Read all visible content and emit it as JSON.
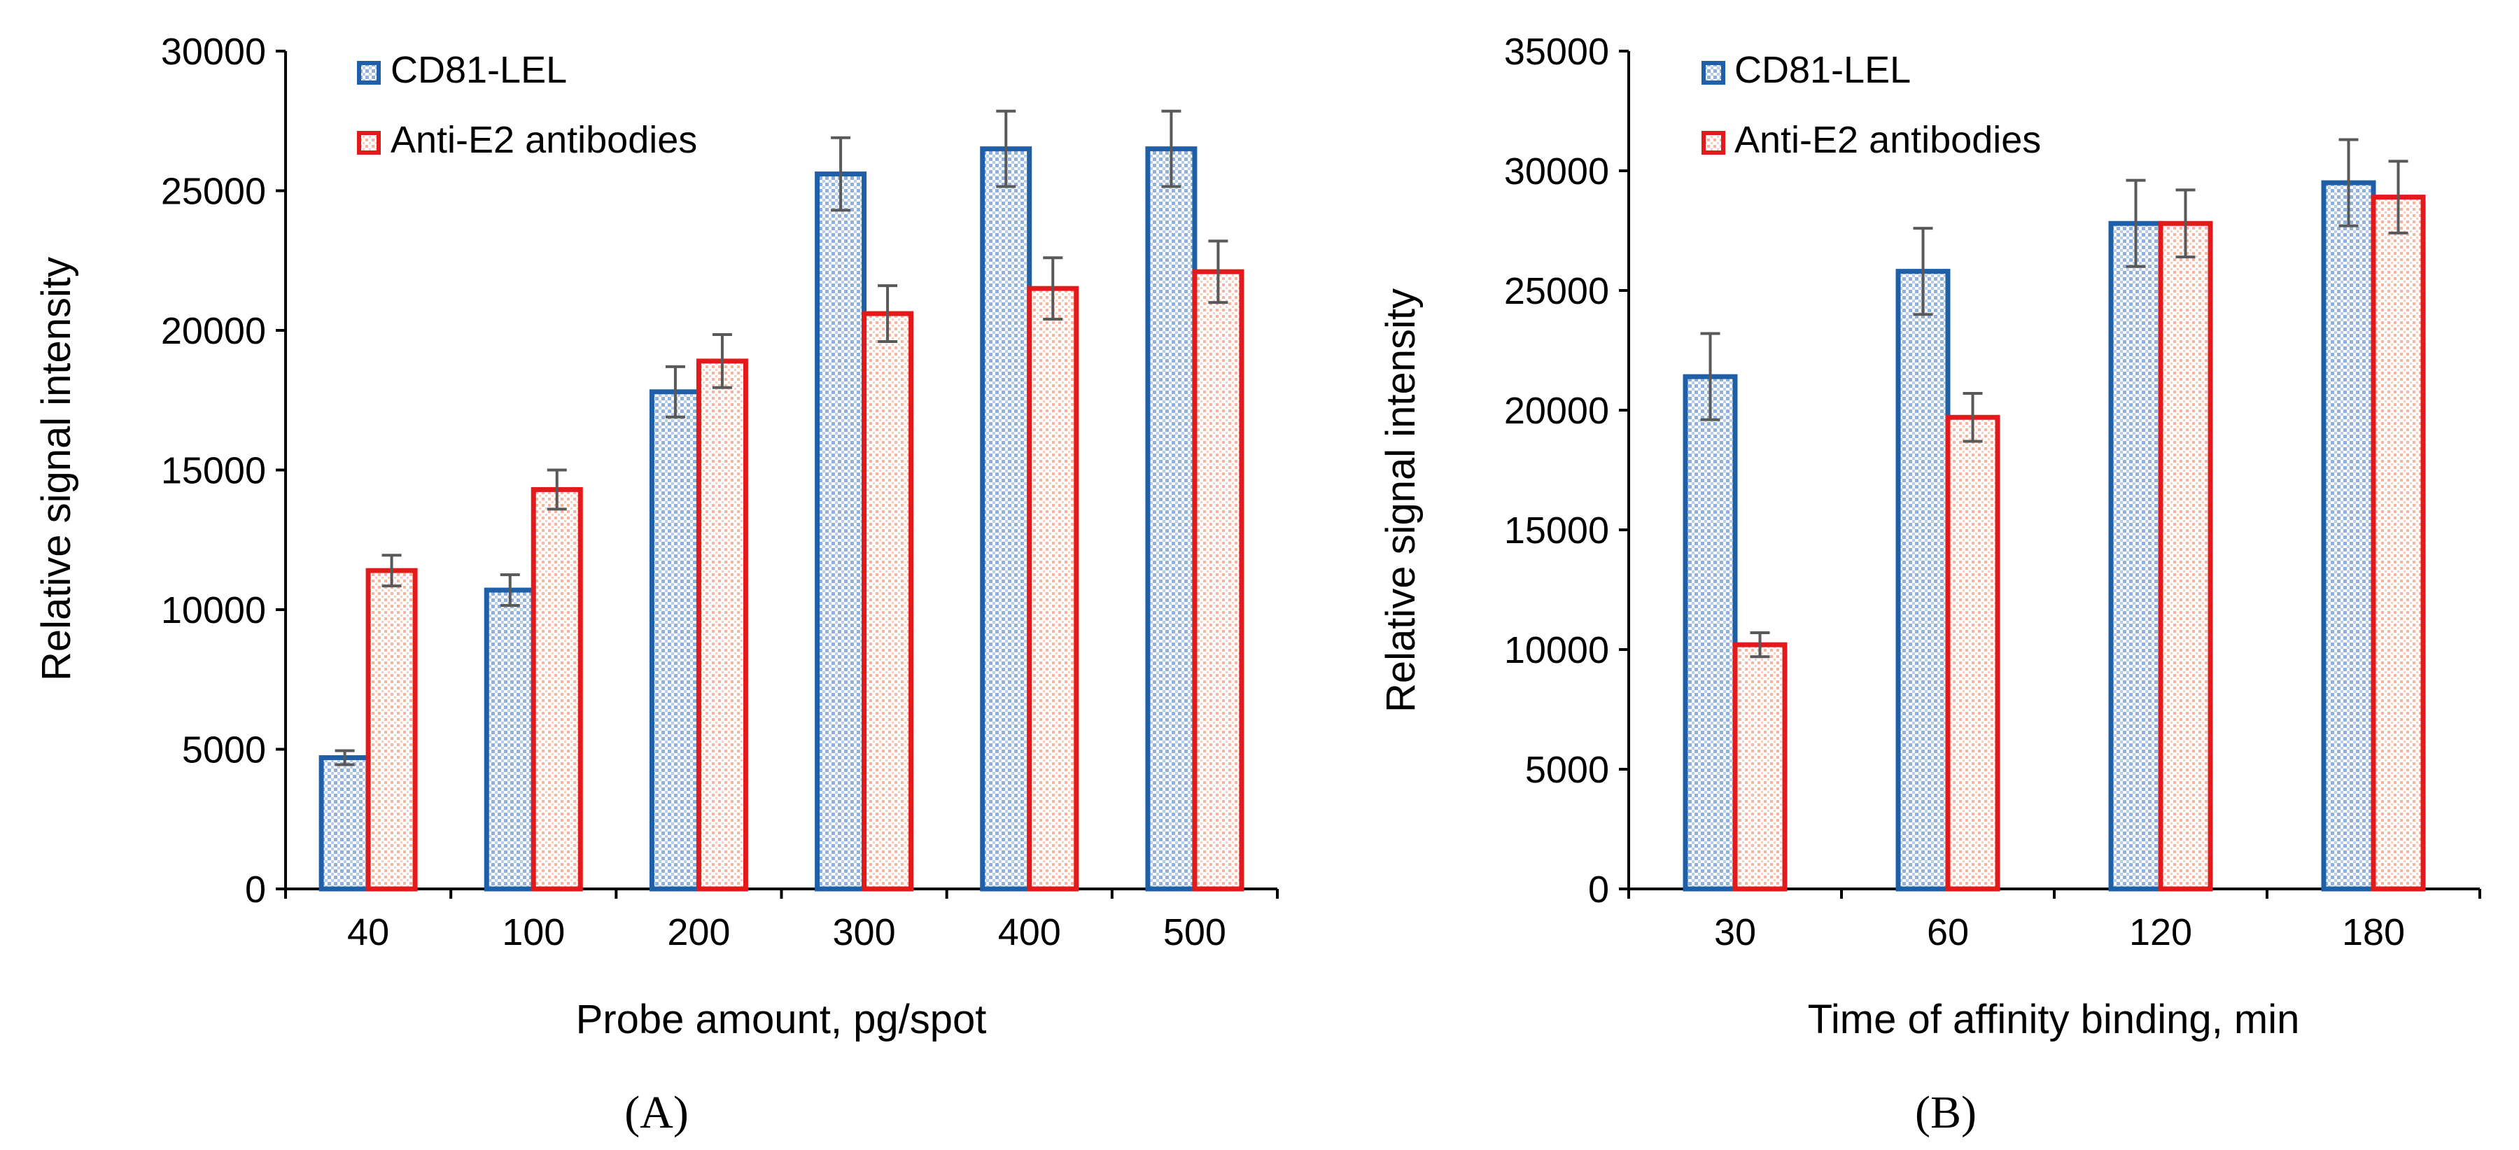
{
  "colors": {
    "cd81_stroke": "#1f5fa8",
    "cd81_fill": "#c9d9ee",
    "anti_stroke": "#e31a1c",
    "anti_fill": "#f8cfc2",
    "axis": "#000000",
    "error_bar": "#595959",
    "text": "#000000"
  },
  "chart_data": [
    {
      "type": "bar",
      "panel_label": "(A)",
      "title": "",
      "xlabel": "Probe amount, pg/spot",
      "ylabel": "Relative signal intensity",
      "ylim": [
        0,
        30000
      ],
      "yticks": [
        0,
        5000,
        10000,
        15000,
        20000,
        25000,
        30000
      ],
      "ytick_labels": [
        "0",
        "5000",
        "10000",
        "15000",
        "20000",
        "25000",
        "30000"
      ],
      "categories": [
        "40",
        "100",
        "200",
        "300",
        "400",
        "500"
      ],
      "grid": false,
      "legend_position": "top-left",
      "series": [
        {
          "name": "CD81-LEL",
          "values": [
            4700,
            10700,
            17800,
            25600,
            26500,
            26500
          ],
          "errors": [
            250,
            550,
            900,
            1300,
            1350,
            1350
          ]
        },
        {
          "name": "Anti-E2 antibodies",
          "values": [
            11400,
            14300,
            18900,
            20600,
            21500,
            22100
          ],
          "errors": [
            550,
            700,
            950,
            1000,
            1100,
            1100
          ]
        }
      ]
    },
    {
      "type": "bar",
      "panel_label": "(B)",
      "title": "",
      "xlabel": "Time of affinity binding, min",
      "ylabel": "Relative signal intensity",
      "ylim": [
        0,
        35000
      ],
      "yticks": [
        0,
        5000,
        10000,
        15000,
        20000,
        25000,
        30000,
        35000
      ],
      "ytick_labels": [
        "0",
        "5000",
        "10000",
        "15000",
        "20000",
        "25000",
        "30000",
        "35000"
      ],
      "categories": [
        "30",
        "60",
        "120",
        "180"
      ],
      "grid": false,
      "legend_position": "top-left",
      "series": [
        {
          "name": "CD81-LEL",
          "values": [
            21400,
            25800,
            27800,
            29500
          ],
          "errors": [
            1800,
            1800,
            1800,
            1800
          ]
        },
        {
          "name": "Anti-E2 antibodies",
          "values": [
            10200,
            19700,
            27800,
            28900
          ],
          "errors": [
            500,
            1000,
            1400,
            1500
          ]
        }
      ]
    }
  ]
}
